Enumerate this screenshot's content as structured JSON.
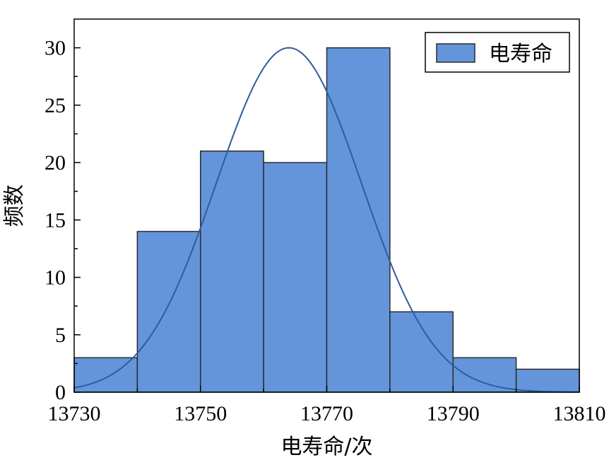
{
  "chart_data": {
    "type": "bar",
    "subtype": "histogram",
    "bins": [
      {
        "start": 13730,
        "end": 13740,
        "count": 3
      },
      {
        "start": 13740,
        "end": 13750,
        "count": 14
      },
      {
        "start": 13750,
        "end": 13760,
        "count": 21
      },
      {
        "start": 13760,
        "end": 13770,
        "count": 20
      },
      {
        "start": 13770,
        "end": 13780,
        "count": 30
      },
      {
        "start": 13780,
        "end": 13790,
        "count": 7
      },
      {
        "start": 13790,
        "end": 13800,
        "count": 3
      },
      {
        "start": 13800,
        "end": 13810,
        "count": 2
      }
    ],
    "fit_curve": {
      "type": "normal",
      "mean": 13764,
      "std": 11.5,
      "peak": 30
    },
    "xlabel": "电寿命/次",
    "ylabel": "频数",
    "xlim": [
      13730,
      13810
    ],
    "ylim": [
      0,
      32.5
    ],
    "xticks": [
      "13730",
      "13750",
      "13770",
      "13790",
      "13810"
    ],
    "yticks": [
      "0",
      "5",
      "10",
      "15",
      "20",
      "25",
      "30"
    ],
    "legend": {
      "label": "电寿命",
      "placement": "top-right"
    },
    "grid": false,
    "colors": {
      "bar_fill": "#6495db",
      "bar_edge": "#2b2b2b",
      "curve": "#2e5c9e"
    }
  }
}
